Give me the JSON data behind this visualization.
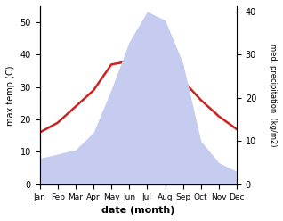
{
  "months": [
    "Jan",
    "Feb",
    "Mar",
    "Apr",
    "May",
    "Jun",
    "Jul",
    "Aug",
    "Sep",
    "Oct",
    "Nov",
    "Dec"
  ],
  "temperature": [
    16,
    19,
    24,
    29,
    37,
    38,
    40,
    38,
    32,
    26,
    21,
    17
  ],
  "precipitation": [
    6,
    7,
    8,
    12,
    22,
    33,
    40,
    38,
    28,
    10,
    5,
    3
  ],
  "temp_color": "#cc2222",
  "precip_fill_color": "#c5ccf0",
  "left_ylabel": "max temp (C)",
  "right_ylabel": "med. precipitation  (kg/m2)",
  "xlabel": "date (month)",
  "left_ylim": [
    0,
    55
  ],
  "right_ylim": [
    0,
    41.25
  ],
  "left_yticks": [
    0,
    10,
    20,
    30,
    40,
    50
  ],
  "right_yticks": [
    0,
    10,
    20,
    30,
    40
  ],
  "bg_color": "#ffffff"
}
